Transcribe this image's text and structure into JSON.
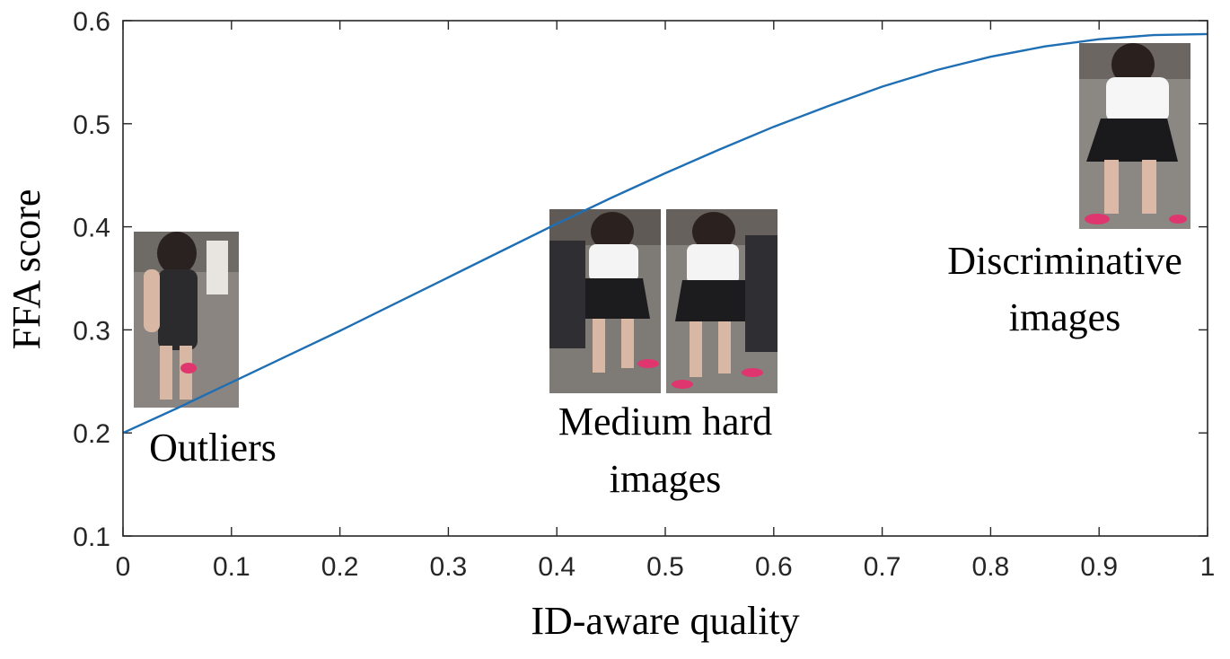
{
  "chart_data": {
    "type": "line",
    "xlabel": "ID-aware quality",
    "ylabel": "FFA score",
    "xlim": [
      0,
      1
    ],
    "ylim": [
      0.1,
      0.6
    ],
    "xticks": [
      0,
      0.1,
      0.2,
      0.3,
      0.4,
      0.5,
      0.6,
      0.7,
      0.8,
      0.9,
      1
    ],
    "xtick_labels": [
      "0",
      "0.1",
      "0.2",
      "0.3",
      "0.4",
      "0.5",
      "0.6",
      "0.7",
      "0.8",
      "0.9",
      "1"
    ],
    "yticks": [
      0.1,
      0.2,
      0.3,
      0.4,
      0.5,
      0.6
    ],
    "ytick_labels": [
      "0.1",
      "0.2",
      "0.3",
      "0.4",
      "0.5",
      "0.6"
    ],
    "grid": false,
    "line_color": "#1f6fb4",
    "series": [
      {
        "x": [
          0,
          0.05,
          0.1,
          0.15,
          0.2,
          0.25,
          0.3,
          0.35,
          0.4,
          0.45,
          0.5,
          0.55,
          0.6,
          0.65,
          0.7,
          0.75,
          0.8,
          0.85,
          0.9,
          0.95,
          1
        ],
        "values": [
          0.2,
          0.224,
          0.249,
          0.274,
          0.299,
          0.325,
          0.351,
          0.377,
          0.403,
          0.428,
          0.452,
          0.475,
          0.497,
          0.517,
          0.536,
          0.552,
          0.565,
          0.575,
          0.582,
          0.586,
          0.587
        ]
      }
    ],
    "annotations": [
      {
        "lines": [
          "Outliers"
        ]
      },
      {
        "lines": [
          "Medium hard",
          "images"
        ]
      },
      {
        "lines": [
          "Discriminative",
          "images"
        ]
      }
    ],
    "image_groups": [
      {
        "name": "outlier-image",
        "description": "person in floral dress",
        "x": 0.1,
        "y": 0.3
      },
      {
        "name": "medium-hard-images",
        "description": "two pedestrian crops",
        "x": 0.5,
        "y": 0.35
      },
      {
        "name": "discriminative-image",
        "description": "woman in white top and black skirt",
        "x": 0.93,
        "y": 0.52
      }
    ]
  }
}
